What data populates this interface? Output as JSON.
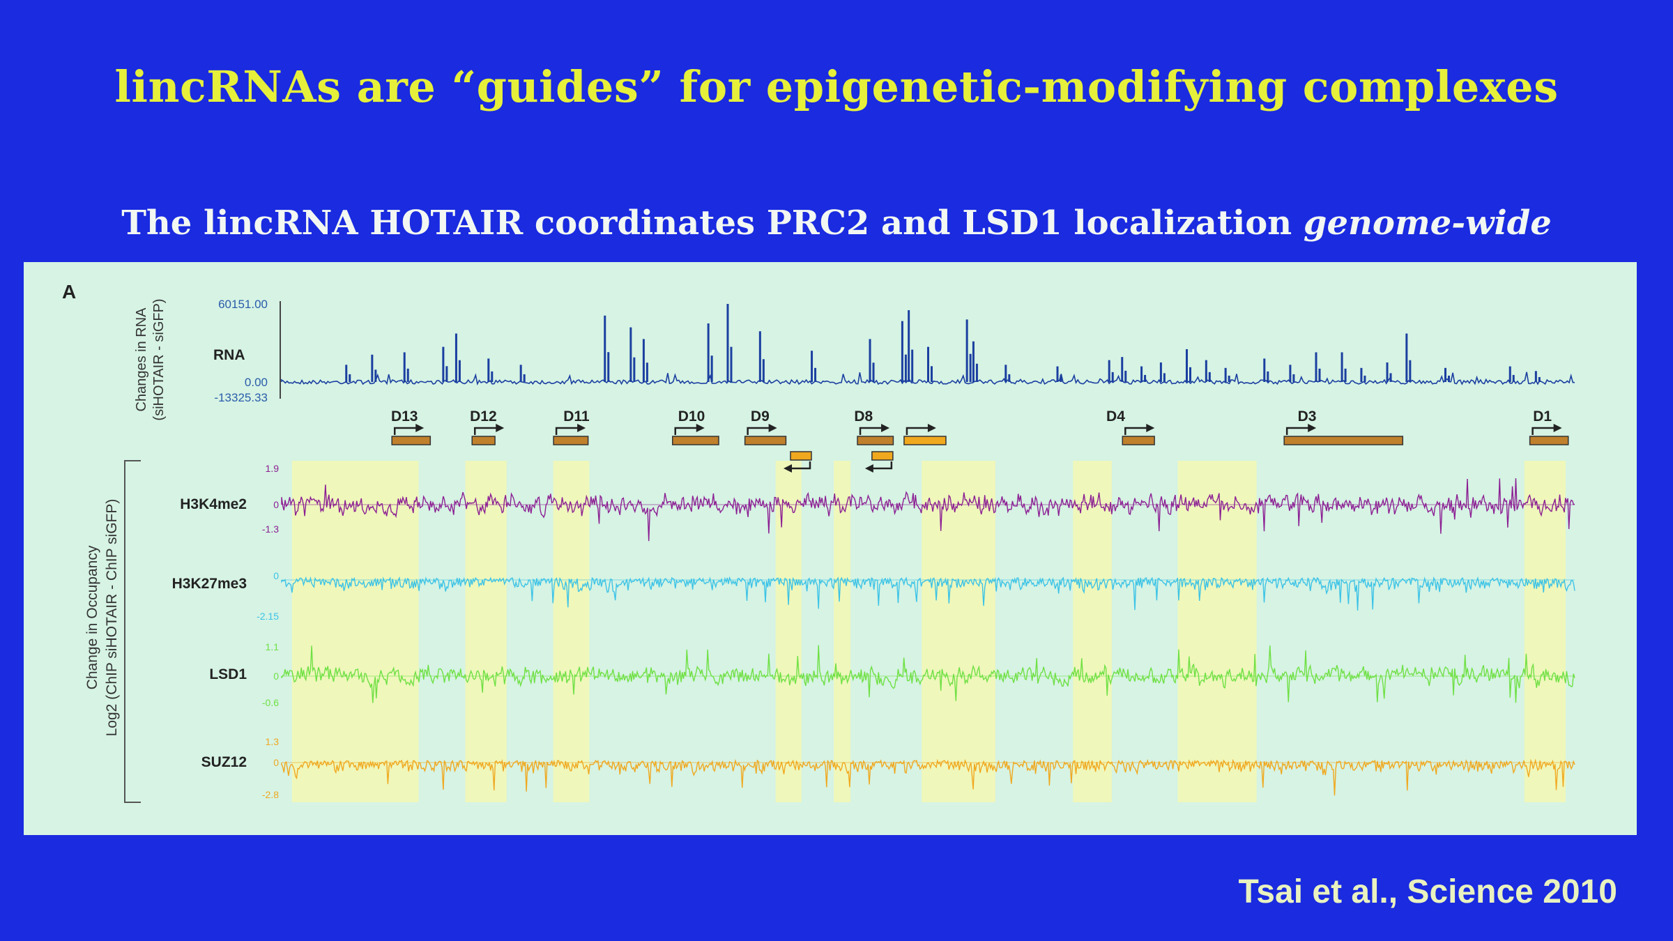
{
  "slide": {
    "title": "lincRNAs are “guides” for epigenetic-modifying complexes",
    "subtitle_main": "The lincRNA HOTAIR coordinates PRC2 and LSD1 localization ",
    "subtitle_italic": "genome-wide",
    "citation": "Tsai et al., Science 2010"
  },
  "colors": {
    "background": "#1a2be0",
    "title": "#e6f03a",
    "panel": "#d6f3e4",
    "highlight": "#f0f7b8",
    "rna": "#1b3fa0",
    "h3k4me2": "#8c1f93",
    "h3k27me3": "#3cc3e6",
    "lsd1": "#6fe044",
    "suz12": "#f0a81e",
    "gene_box": "#c0802c"
  },
  "figure": {
    "panel_label": "A",
    "rna_axis_title_1": "Changes in RNA",
    "rna_axis_title_2": "(siHOTAIR - siGFP)",
    "occupancy_axis_title_1": "Change in Occupancy",
    "occupancy_axis_title_2": "Log2 (ChIP siHOTAIR - ChIP siGFP)",
    "genes": [
      "D13",
      "D12",
      "D11",
      "D10",
      "D9",
      "D8",
      "D4",
      "D3",
      "D1"
    ]
  },
  "chart_data": {
    "type": "line",
    "x_range": [
      0,
      1
    ],
    "highlight_regions": [
      [
        0.008,
        0.106
      ],
      [
        0.142,
        0.174
      ],
      [
        0.21,
        0.238
      ],
      [
        0.382,
        0.402
      ],
      [
        0.427,
        0.44
      ],
      [
        0.495,
        0.552
      ],
      [
        0.612,
        0.642
      ],
      [
        0.693,
        0.754
      ],
      [
        0.961,
        0.993
      ]
    ],
    "series": [
      {
        "name": "RNA",
        "ticks": [
          "60151.00",
          "0.00",
          "-13325.33"
        ],
        "ylim": [
          -13325.33,
          60151.0
        ],
        "peaks": [
          [
            0.05,
            0.22
          ],
          [
            0.07,
            0.35
          ],
          [
            0.095,
            0.38
          ],
          [
            0.125,
            0.45
          ],
          [
            0.135,
            0.62
          ],
          [
            0.16,
            0.3
          ],
          [
            0.185,
            0.22
          ],
          [
            0.25,
            0.85
          ],
          [
            0.27,
            0.7
          ],
          [
            0.28,
            0.55
          ],
          [
            0.33,
            0.75
          ],
          [
            0.345,
            1.0
          ],
          [
            0.37,
            0.65
          ],
          [
            0.41,
            0.4
          ],
          [
            0.455,
            0.55
          ],
          [
            0.48,
            0.78
          ],
          [
            0.485,
            0.92
          ],
          [
            0.5,
            0.45
          ],
          [
            0.535,
            0.52
          ],
          [
            0.53,
            0.8
          ],
          [
            0.56,
            0.22
          ],
          [
            0.6,
            0.2
          ],
          [
            0.64,
            0.28
          ],
          [
            0.65,
            0.32
          ],
          [
            0.665,
            0.2
          ],
          [
            0.68,
            0.25
          ],
          [
            0.7,
            0.42
          ],
          [
            0.715,
            0.28
          ],
          [
            0.73,
            0.18
          ],
          [
            0.76,
            0.3
          ],
          [
            0.78,
            0.22
          ],
          [
            0.8,
            0.38
          ],
          [
            0.82,
            0.38
          ],
          [
            0.835,
            0.18
          ],
          [
            0.855,
            0.25
          ],
          [
            0.87,
            0.62
          ],
          [
            0.9,
            0.18
          ],
          [
            0.95,
            0.2
          ],
          [
            0.97,
            0.14
          ]
        ]
      },
      {
        "name": "H3K4me2",
        "ticks": [
          "1.9",
          "0",
          "-1.3"
        ],
        "ylim": [
          -1.3,
          1.9
        ]
      },
      {
        "name": "H3K27me3",
        "ticks": [
          "0",
          "-2.15"
        ],
        "ylim": [
          -2.15,
          0.2
        ]
      },
      {
        "name": "LSD1",
        "ticks": [
          "1.1",
          "0",
          "-0.6"
        ],
        "ylim": [
          -0.6,
          1.1
        ]
      },
      {
        "name": "SUZ12",
        "ticks": [
          "1.3",
          "0",
          "-2.8"
        ],
        "ylim": [
          -2.8,
          1.3
        ]
      }
    ]
  }
}
